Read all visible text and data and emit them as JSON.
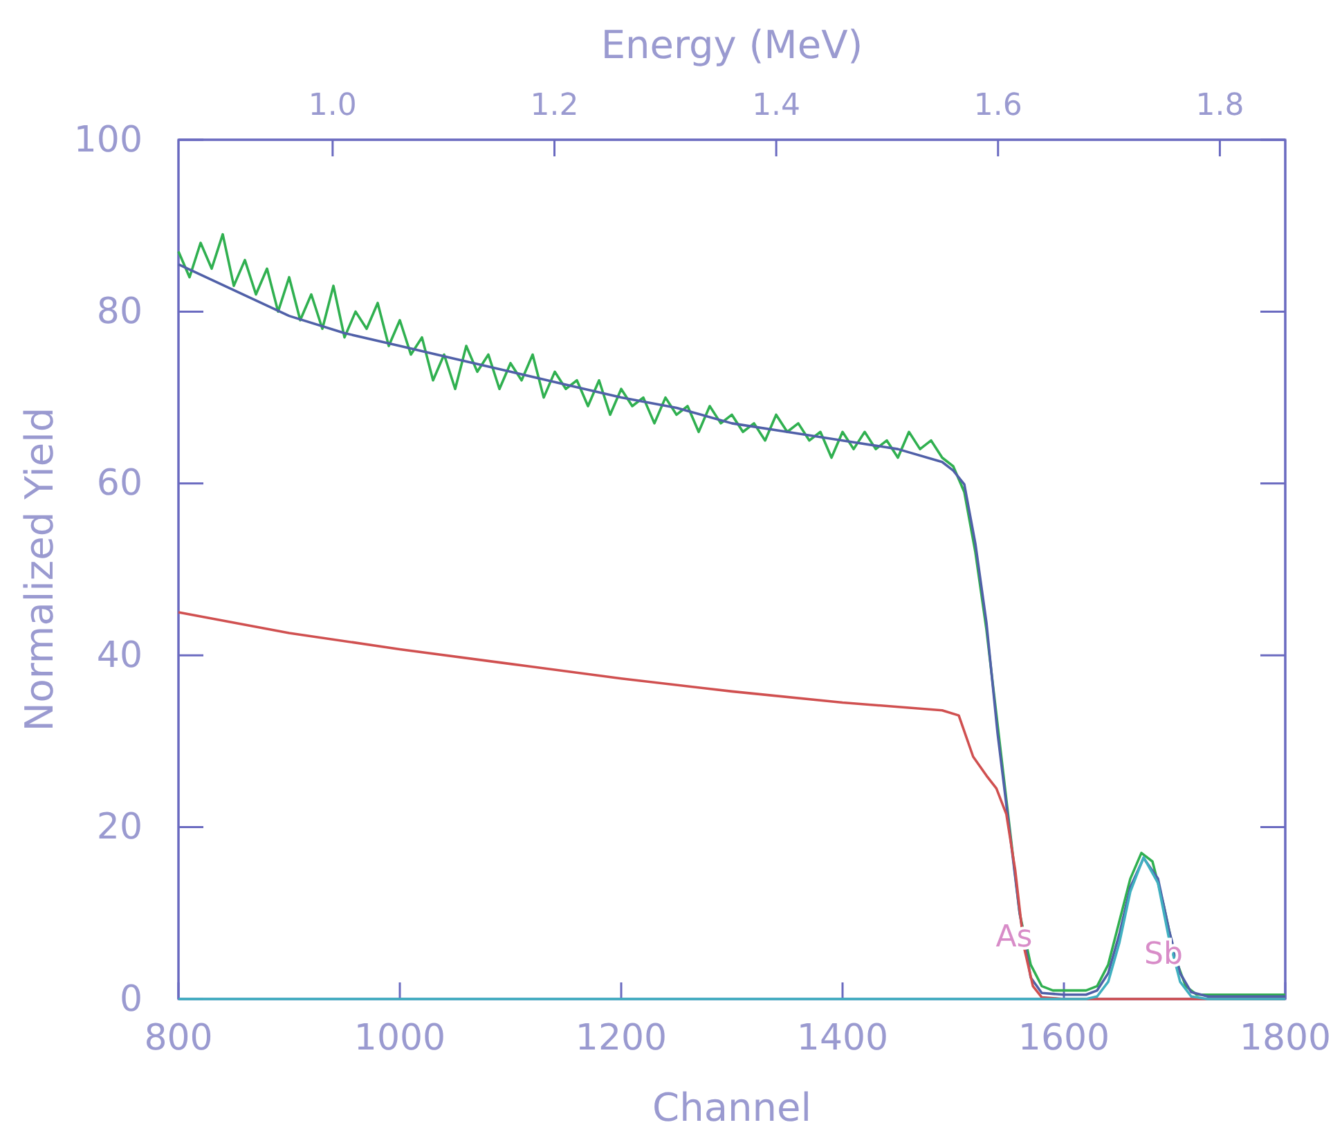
{
  "chart_data": {
    "type": "line",
    "xlabel": "Channel",
    "ylabel": "Normalized Yield",
    "x2label": "Energy (MeV)",
    "xlim": [
      800,
      1800
    ],
    "xticks": [
      800,
      1000,
      1200,
      1400,
      1600,
      1800
    ],
    "ylim": [
      0,
      100
    ],
    "yticks": [
      0,
      20,
      40,
      60,
      80,
      100
    ],
    "x2lim": [
      0.861,
      1.859
    ],
    "x2ticks": [
      {
        "value": 1.0,
        "label": "1.0"
      },
      {
        "value": 1.2,
        "label": "1.2"
      },
      {
        "value": 1.4,
        "label": "1.4"
      },
      {
        "value": 1.6,
        "label": "1.6"
      },
      {
        "value": 1.8,
        "label": "1.8"
      }
    ],
    "grid": false,
    "marker": "none",
    "line_style": "solid",
    "annotations": [
      {
        "text": "As",
        "x": 1560,
        "y": 10
      },
      {
        "text": "Sb",
        "x": 1695,
        "y": 8
      }
    ],
    "series": [
      {
        "color": "#30b050",
        "x": [
          800,
          810,
          820,
          830,
          840,
          850,
          860,
          870,
          880,
          890,
          900,
          910,
          920,
          930,
          940,
          950,
          960,
          970,
          980,
          990,
          1000,
          1010,
          1020,
          1030,
          1040,
          1050,
          1060,
          1070,
          1080,
          1090,
          1100,
          1110,
          1120,
          1130,
          1140,
          1150,
          1160,
          1170,
          1180,
          1190,
          1200,
          1210,
          1220,
          1230,
          1240,
          1250,
          1260,
          1270,
          1280,
          1290,
          1300,
          1310,
          1320,
          1330,
          1340,
          1350,
          1360,
          1370,
          1380,
          1390,
          1400,
          1410,
          1420,
          1430,
          1440,
          1450,
          1460,
          1470,
          1480,
          1490,
          1500,
          1510,
          1520,
          1530,
          1540,
          1550,
          1560,
          1570,
          1580,
          1590,
          1600,
          1610,
          1620,
          1630,
          1640,
          1650,
          1660,
          1670,
          1680,
          1690,
          1700,
          1710,
          1720,
          1740,
          1760,
          1780,
          1800
        ],
        "values": [
          87,
          84,
          88,
          85,
          89,
          83,
          86,
          82,
          85,
          80,
          84,
          79,
          82,
          78,
          83,
          77,
          80,
          78,
          81,
          76,
          79,
          75,
          77,
          72,
          75,
          71,
          76,
          73,
          75,
          71,
          74,
          72,
          75,
          70,
          73,
          71,
          72,
          69,
          72,
          68,
          71,
          69,
          70,
          67,
          70,
          68,
          69,
          66,
          69,
          67,
          68,
          66,
          67,
          65,
          68,
          66,
          67,
          65,
          66,
          63,
          66,
          64,
          66,
          64,
          65,
          63,
          66,
          64,
          65,
          63,
          62,
          59,
          52,
          43,
          32,
          21,
          10,
          4,
          1.5,
          1,
          1,
          1,
          1,
          1.5,
          4,
          9,
          14,
          17,
          16,
          11,
          5,
          1.5,
          0.5,
          0.5,
          0.5,
          0.5,
          0.5
        ]
      },
      {
        "color": "#5060a8",
        "x": [
          800,
          850,
          900,
          950,
          1000,
          1050,
          1100,
          1150,
          1200,
          1250,
          1300,
          1350,
          1400,
          1450,
          1490,
          1500,
          1510,
          1520,
          1530,
          1540,
          1550,
          1560,
          1570,
          1580,
          1600,
          1620,
          1630,
          1640,
          1650,
          1660,
          1672,
          1685,
          1695,
          1705,
          1715,
          1730,
          1800
        ],
        "values": [
          85.5,
          82.5,
          79.5,
          77.5,
          76,
          74.5,
          73,
          71.5,
          70,
          68.8,
          67,
          66,
          65,
          64,
          62.5,
          61.5,
          59.9,
          53,
          43.8,
          31,
          20.5,
          10,
          2.5,
          0.7,
          0.5,
          0.5,
          1,
          3,
          7.5,
          13,
          16.4,
          14,
          8,
          3,
          0.8,
          0.3,
          0.3
        ]
      },
      {
        "color": "#d05050",
        "x": [
          800,
          900,
          1000,
          1100,
          1200,
          1300,
          1400,
          1490,
          1505,
          1518,
          1530,
          1539,
          1548,
          1556,
          1564,
          1572,
          1580,
          1600,
          1800
        ],
        "values": [
          45,
          42.6,
          40.7,
          39,
          37.3,
          35.8,
          34.5,
          33.6,
          33,
          28.2,
          26,
          24.5,
          21.5,
          15,
          6,
          1.5,
          0.2,
          0,
          0
        ]
      },
      {
        "color": "#40b0c0",
        "x": [
          800,
          1620,
          1630,
          1640,
          1650,
          1660,
          1672,
          1685,
          1695,
          1705,
          1715,
          1730,
          1800
        ],
        "values": [
          0,
          0,
          0.3,
          2,
          6.5,
          12.5,
          16.5,
          13.5,
          7,
          2,
          0.3,
          0,
          0
        ]
      }
    ]
  }
}
